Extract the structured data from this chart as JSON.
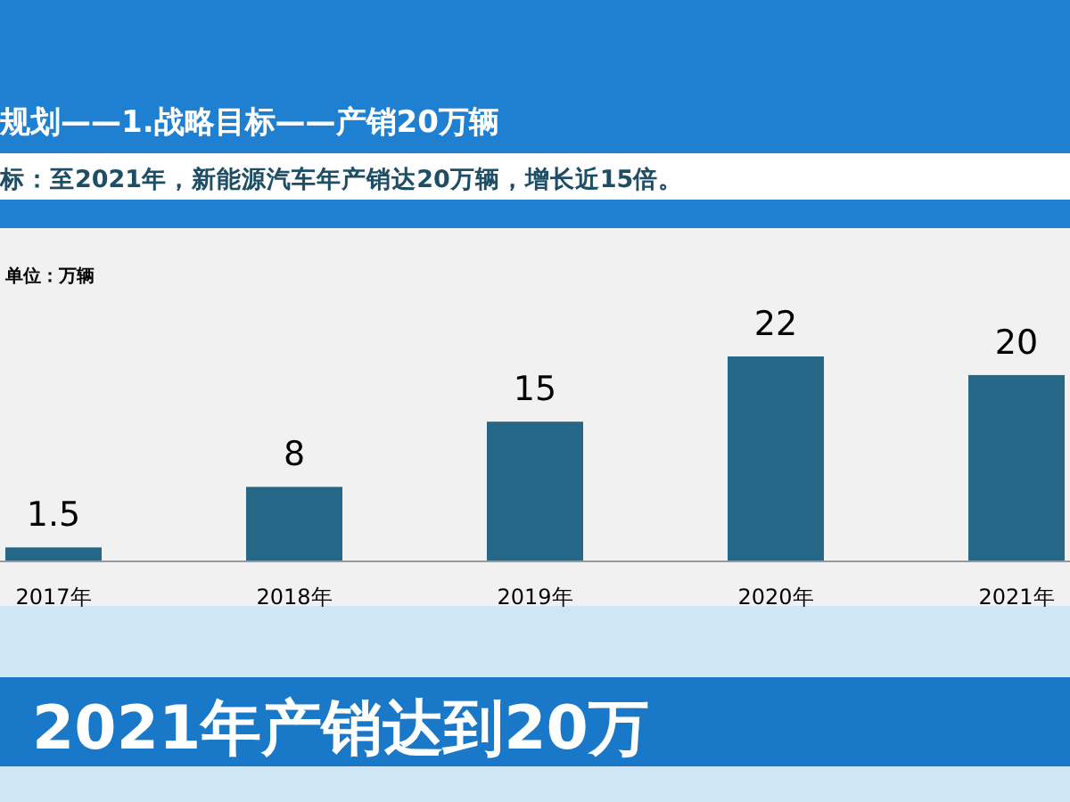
{
  "chart_data": {
    "type": "bar",
    "title": "规划——1.战略目标——产销20万辆",
    "subtitle": "标：至2021年，新能源汽车年产销达20万辆，增长近15倍。",
    "annotations": [
      "单位：万辆",
      "2021年产销达到20万"
    ],
    "categories": [
      "2017年",
      "2018年",
      "2019年",
      "2020年",
      "2021年"
    ],
    "values": [
      1.5,
      8,
      15,
      22,
      20
    ],
    "color": "#266787",
    "data_labels": true
  }
}
